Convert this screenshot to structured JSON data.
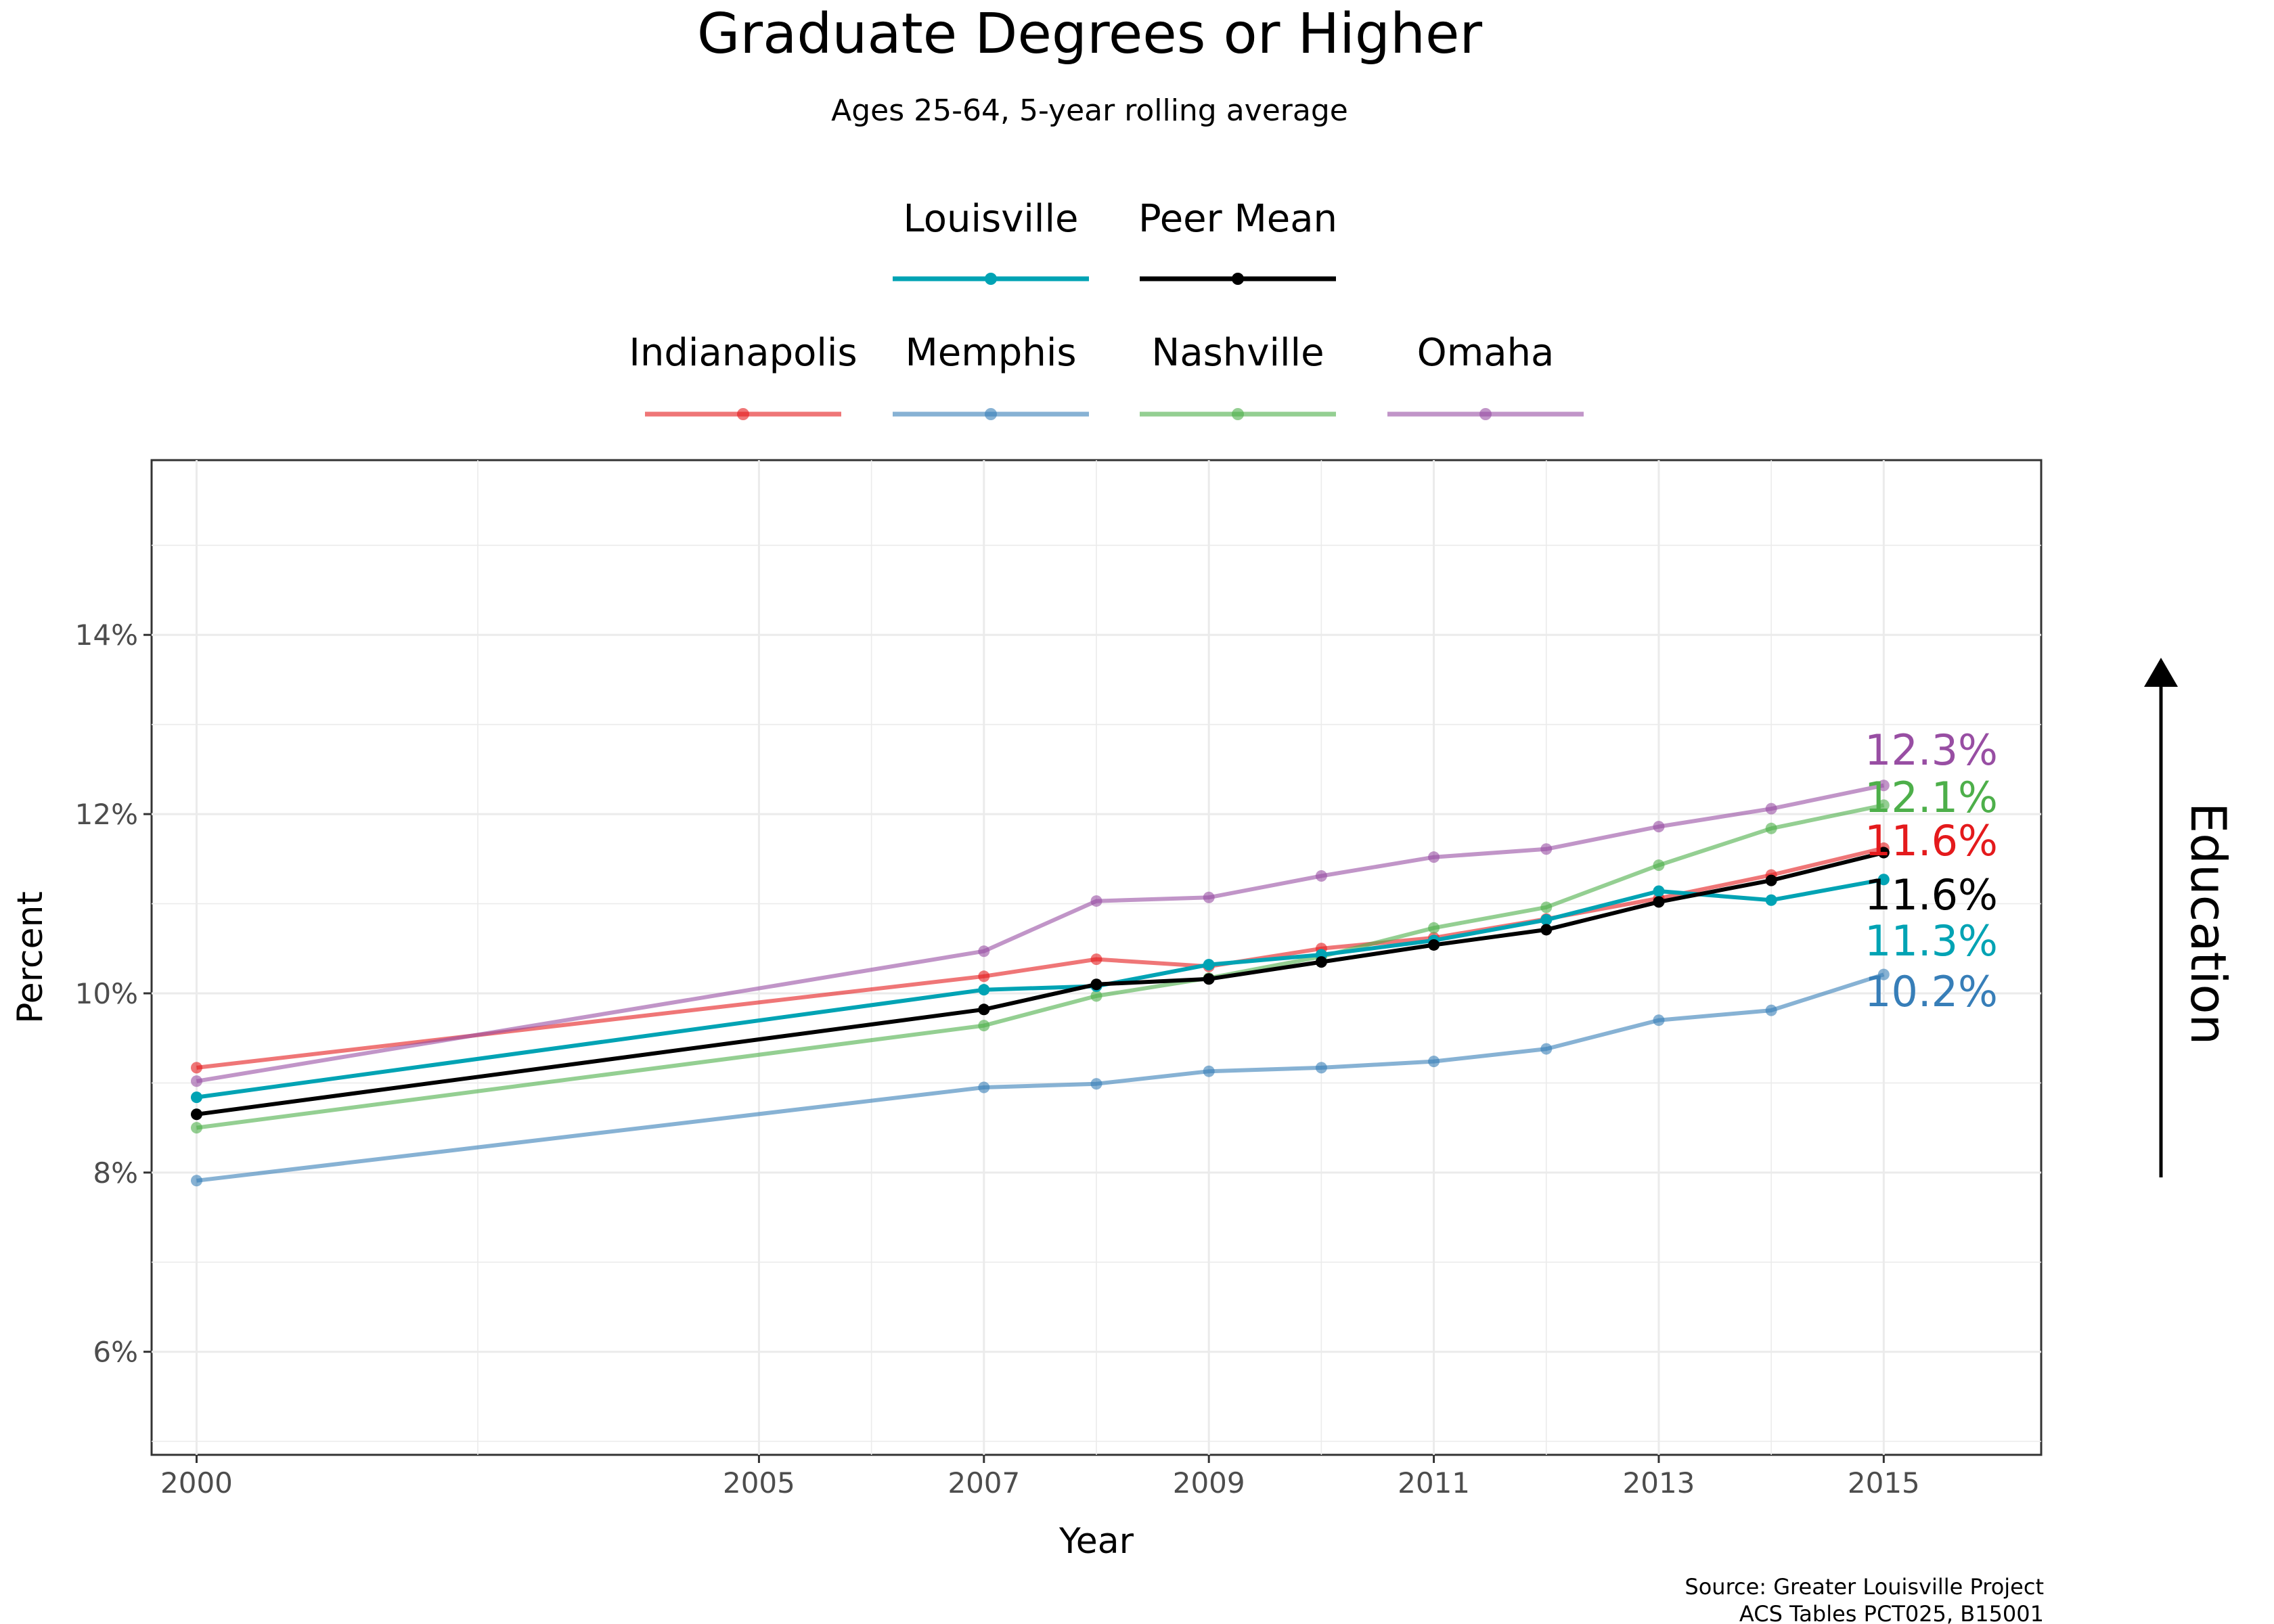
{
  "chart_data": {
    "type": "line",
    "title": "Graduate Degrees or Higher",
    "subtitle": "Ages 25-64, 5-year rolling average",
    "xlabel": "Year",
    "ylabel": "Percent",
    "xlim": [
      1999.6,
      2016.4
    ],
    "ylim": [
      4.85,
      15.95
    ],
    "x_ticks": [
      2000,
      2005,
      2007,
      2009,
      2011,
      2013,
      2015
    ],
    "y_ticks": [
      6,
      8,
      10,
      12,
      14
    ],
    "y_tick_labels": [
      "6%",
      "8%",
      "10%",
      "12%",
      "14%"
    ],
    "grid": true,
    "legend_position": "top",
    "x": [
      2000,
      2007,
      2008,
      2009,
      2010,
      2011,
      2012,
      2013,
      2014,
      2015
    ],
    "series": [
      {
        "name": "Indianapolis",
        "color": "#e41a1c",
        "group": "peer",
        "values": [
          9.17,
          10.19,
          10.38,
          10.3,
          10.5,
          10.62,
          10.83,
          11.06,
          11.32,
          11.62
        ],
        "end_label": "11.6%"
      },
      {
        "name": "Memphis",
        "color": "#377eb8",
        "group": "peer",
        "values": [
          7.91,
          8.95,
          8.99,
          9.13,
          9.17,
          9.24,
          9.38,
          9.7,
          9.81,
          10.21
        ],
        "end_label": "10.2%"
      },
      {
        "name": "Nashville",
        "color": "#4daf4a",
        "group": "peer",
        "values": [
          8.5,
          9.64,
          9.97,
          10.17,
          10.41,
          10.73,
          10.96,
          11.43,
          11.84,
          12.1
        ],
        "end_label": "12.1%"
      },
      {
        "name": "Omaha",
        "color": "#984ea3",
        "group": "peer",
        "values": [
          9.02,
          10.47,
          11.03,
          11.07,
          11.31,
          11.52,
          11.61,
          11.86,
          12.06,
          12.32
        ],
        "end_label": "12.3%"
      },
      {
        "name": "Louisville",
        "color": "#00a3b4",
        "group": "main",
        "values": [
          8.84,
          10.04,
          10.08,
          10.32,
          10.43,
          10.59,
          10.82,
          11.14,
          11.04,
          11.27
        ],
        "end_label": "11.3%"
      },
      {
        "name": "Peer Mean",
        "color": "#000000",
        "group": "main",
        "values": [
          8.65,
          9.82,
          10.1,
          10.16,
          10.35,
          10.54,
          10.71,
          11.02,
          11.26,
          11.57
        ],
        "end_label": "11.6%"
      }
    ],
    "annotation": "Education",
    "source_lines": [
      "Source: Greater Louisville Project",
      "ACS Tables PCT025, B15001"
    ]
  }
}
